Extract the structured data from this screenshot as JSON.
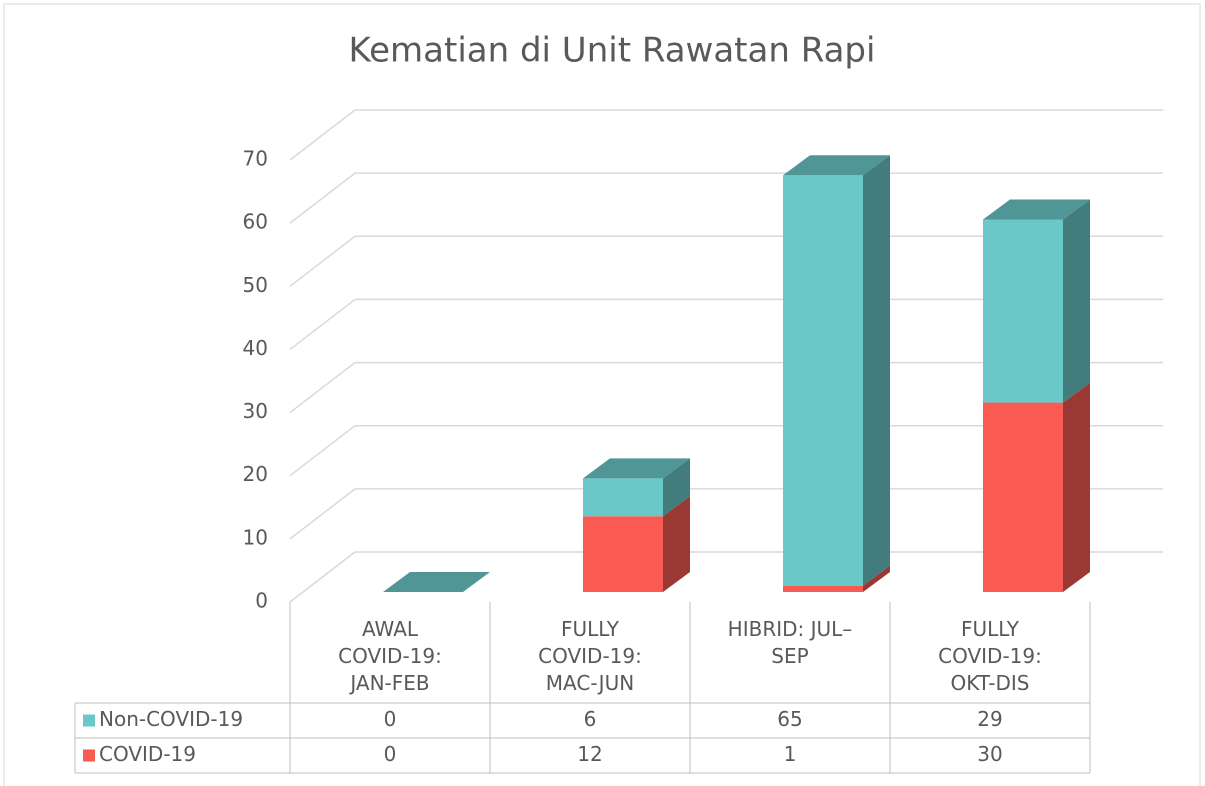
{
  "chart_data": {
    "type": "bar3d_stacked",
    "title": "Kematian di Unit Rawatan Rapi",
    "categories": [
      "AWAL COVID-19: JAN-FEB",
      "FULLY COVID-19: MAC-JUN",
      "HIBRID: JUL–SEP",
      "FULLY COVID-19: OKT-DIS"
    ],
    "series": [
      {
        "name": "COVID-19",
        "color": "#f95a52",
        "values": [
          0,
          12,
          1,
          30
        ]
      },
      {
        "name": "Non-COVID-19",
        "color": "#6ac8c8",
        "values": [
          0,
          6,
          65,
          29
        ]
      }
    ],
    "ylim": [
      0,
      70
    ],
    "yticks": [
      0,
      10,
      20,
      30,
      40,
      50,
      60,
      70
    ],
    "grid": true,
    "data_table": true
  }
}
